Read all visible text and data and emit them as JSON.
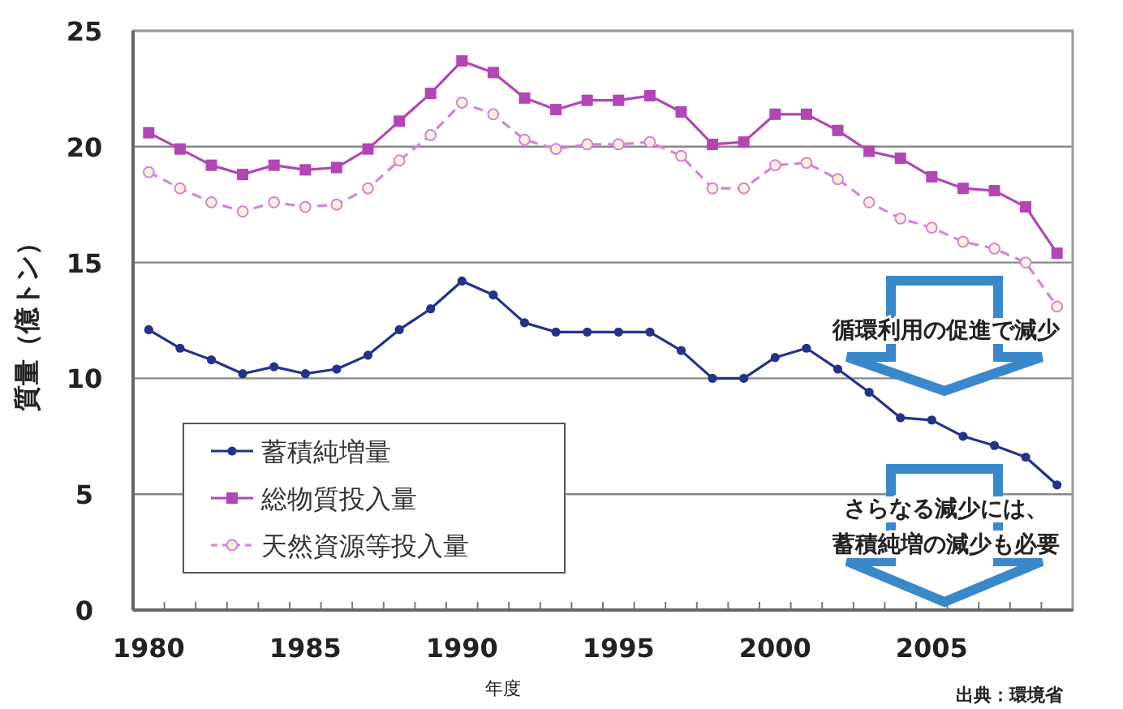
{
  "chart_data": {
    "type": "line",
    "ylabel": "質量（億トン）",
    "xlabel": "年度",
    "x": [
      1980,
      1981,
      1982,
      1983,
      1984,
      1985,
      1986,
      1987,
      1988,
      1989,
      1990,
      1991,
      1992,
      1993,
      1994,
      1995,
      1996,
      1997,
      1998,
      1999,
      2000,
      2001,
      2002,
      2003,
      2004,
      2005,
      2006,
      2007,
      2008,
      2009
    ],
    "series": [
      {
        "name": "蓄積純増量",
        "color": "#26318a",
        "marker": "circle",
        "line_style": "solid",
        "values": [
          12.1,
          11.3,
          10.8,
          10.2,
          10.5,
          10.2,
          10.4,
          11.0,
          12.1,
          13.0,
          14.2,
          13.6,
          12.4,
          12.0,
          12.0,
          12.0,
          12.0,
          11.2,
          10.0,
          10.0,
          10.9,
          11.3,
          10.4,
          9.4,
          8.3,
          8.2,
          7.5,
          7.1,
          6.6,
          5.4
        ]
      },
      {
        "name": "総物質投入量",
        "color": "#b146b4",
        "marker": "square",
        "line_style": "solid",
        "values": [
          20.6,
          19.9,
          19.2,
          18.8,
          19.2,
          19.0,
          19.1,
          19.9,
          21.1,
          22.3,
          23.7,
          23.2,
          22.1,
          21.6,
          22.0,
          22.0,
          22.2,
          21.5,
          20.1,
          20.2,
          21.4,
          21.4,
          20.7,
          19.8,
          19.5,
          18.7,
          18.2,
          18.1,
          17.4,
          15.4
        ]
      },
      {
        "name": "天然資源等投入量",
        "color": "#d385d3",
        "marker": "circle_open",
        "line_style": "dashed",
        "values": [
          18.9,
          18.2,
          17.6,
          17.2,
          17.6,
          17.4,
          17.5,
          18.2,
          19.4,
          20.5,
          21.9,
          21.4,
          20.3,
          19.9,
          20.1,
          20.1,
          20.2,
          19.6,
          18.2,
          18.2,
          19.2,
          19.3,
          18.6,
          17.6,
          16.9,
          16.5,
          15.9,
          15.6,
          15.0,
          13.1
        ]
      }
    ],
    "xlim": [
      1979.5,
      2009.5
    ],
    "xticks": [
      1980,
      1985,
      1990,
      1995,
      2000,
      2005
    ],
    "ylim": [
      0,
      25
    ],
    "yticks": [
      0,
      5,
      10,
      15,
      20,
      25
    ],
    "grid": "y",
    "legend": "bottom left",
    "annotations": [
      "循環利用の促進で減少",
      "さらなる減少には、",
      "蓄積純増の減少も必要",
      "出典：環境省"
    ]
  }
}
